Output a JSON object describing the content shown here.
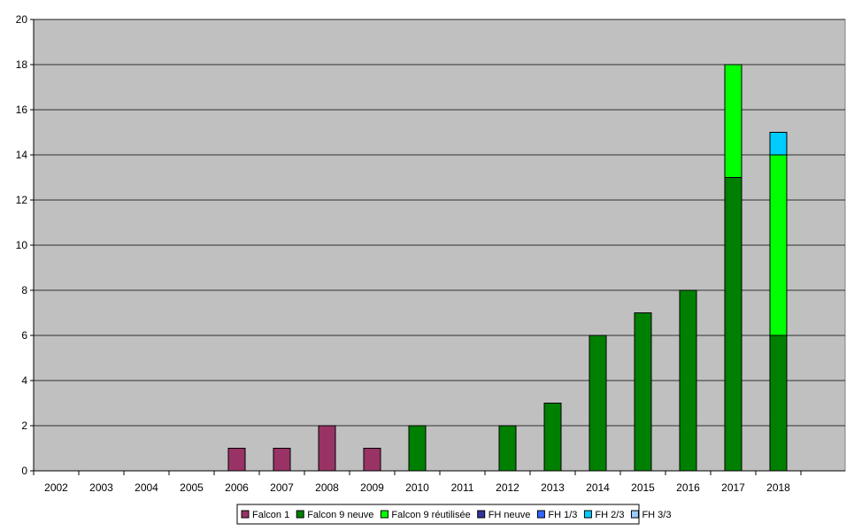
{
  "chart_data": {
    "type": "bar",
    "stacked": true,
    "categories": [
      "2002",
      "2003",
      "2004",
      "2005",
      "2006",
      "2007",
      "2008",
      "2009",
      "2010",
      "2011",
      "2012",
      "2013",
      "2014",
      "2015",
      "2016",
      "2017",
      "2018"
    ],
    "ylim": [
      0,
      20
    ],
    "yticks": [
      0,
      2,
      4,
      6,
      8,
      10,
      12,
      14,
      16,
      18,
      20
    ],
    "grid": true,
    "legend_position": "bottom",
    "plot_background": "#c0c0c0",
    "series": [
      {
        "name": "Falcon 1",
        "color": "#993366",
        "values": [
          0,
          0,
          0,
          0,
          1,
          1,
          2,
          1,
          0,
          0,
          0,
          0,
          0,
          0,
          0,
          0,
          0
        ]
      },
      {
        "name": "Falcon 9 neuve",
        "color": "#008000",
        "values": [
          0,
          0,
          0,
          0,
          0,
          0,
          0,
          0,
          2,
          0,
          2,
          3,
          6,
          7,
          8,
          13,
          6
        ]
      },
      {
        "name": "Falcon 9 réutilisée",
        "color": "#00ff00",
        "values": [
          0,
          0,
          0,
          0,
          0,
          0,
          0,
          0,
          0,
          0,
          0,
          0,
          0,
          0,
          0,
          5,
          8
        ]
      },
      {
        "name": "FH neuve",
        "color": "#333399",
        "values": [
          0,
          0,
          0,
          0,
          0,
          0,
          0,
          0,
          0,
          0,
          0,
          0,
          0,
          0,
          0,
          0,
          0
        ]
      },
      {
        "name": "FH 1/3",
        "color": "#3366ff",
        "values": [
          0,
          0,
          0,
          0,
          0,
          0,
          0,
          0,
          0,
          0,
          0,
          0,
          0,
          0,
          0,
          0,
          0
        ]
      },
      {
        "name": "FH 2/3",
        "color": "#00ccff",
        "values": [
          0,
          0,
          0,
          0,
          0,
          0,
          0,
          0,
          0,
          0,
          0,
          0,
          0,
          0,
          0,
          0,
          1
        ]
      },
      {
        "name": "FH 3/3",
        "color": "#99ccff",
        "values": [
          0,
          0,
          0,
          0,
          0,
          0,
          0,
          0,
          0,
          0,
          0,
          0,
          0,
          0,
          0,
          0,
          0
        ]
      }
    ]
  }
}
